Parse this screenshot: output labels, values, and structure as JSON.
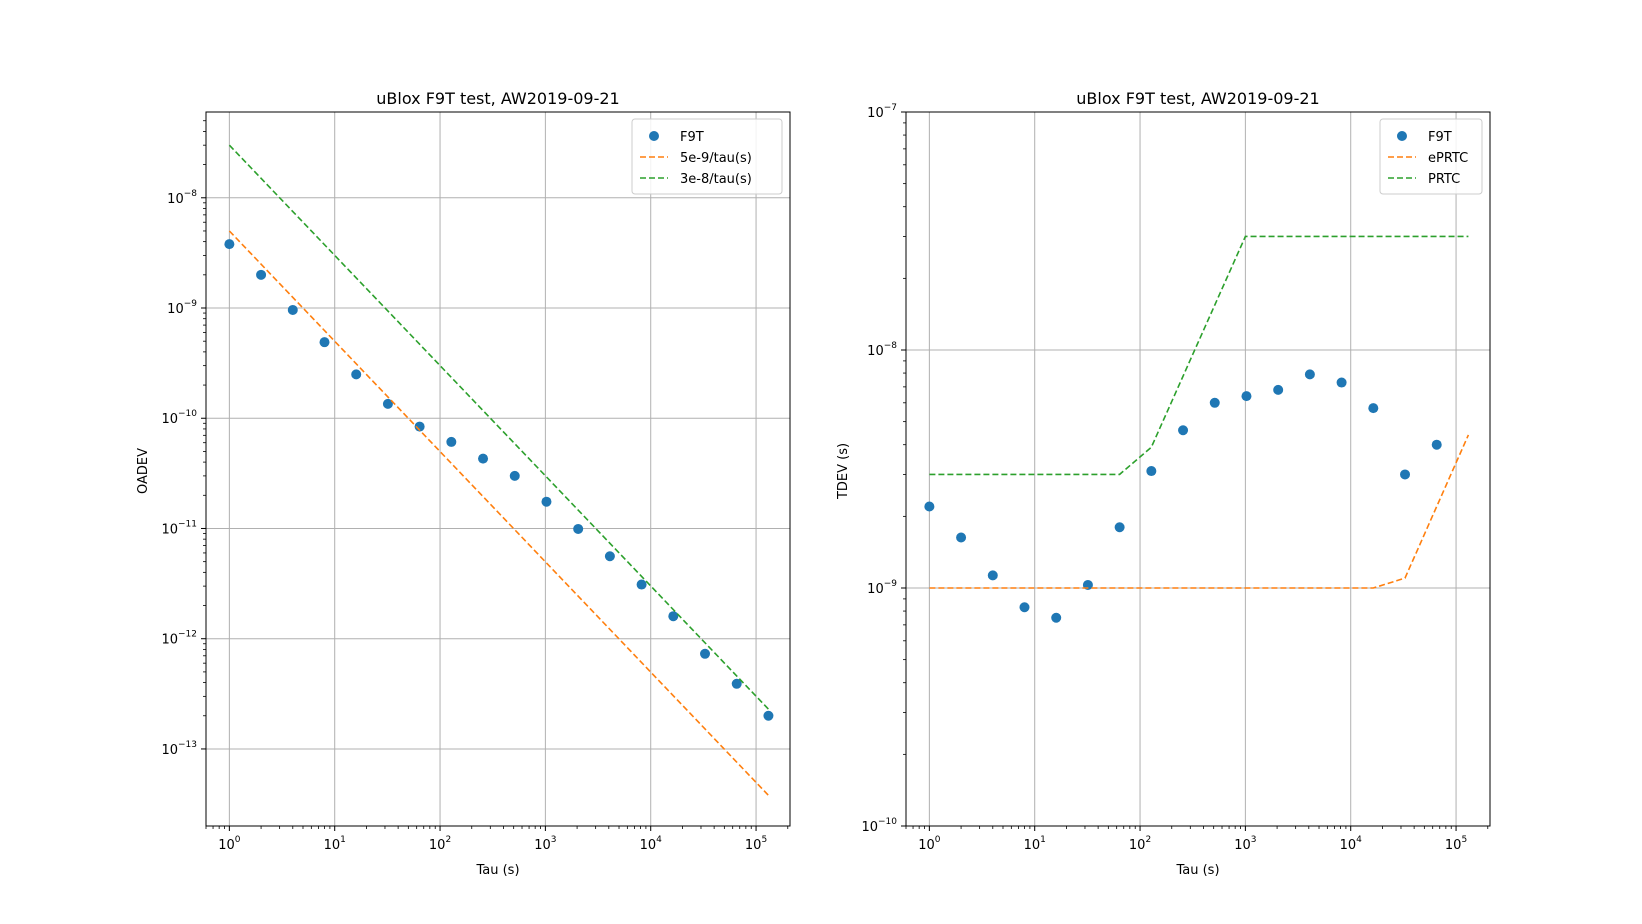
{
  "chart_data": [
    {
      "type": "scatter",
      "title": "uBlox F9T test, AW2019-09-21",
      "xlabel": "Tau (s)",
      "ylabel": "OADEV",
      "xscale": "log",
      "yscale": "log",
      "xlim": [
        0.6,
        210000
      ],
      "ylim": [
        2e-14,
        6e-08
      ],
      "xticks": [
        {
          "base": "10",
          "exp": "0",
          "value": 1
        },
        {
          "base": "10",
          "exp": "1",
          "value": 10
        },
        {
          "base": "10",
          "exp": "2",
          "value": 100
        },
        {
          "base": "10",
          "exp": "3",
          "value": 1000
        },
        {
          "base": "10",
          "exp": "4",
          "value": 10000
        },
        {
          "base": "10",
          "exp": "5",
          "value": 100000
        }
      ],
      "yticks": [
        {
          "base": "10",
          "exp": "−13",
          "value": 1e-13
        },
        {
          "base": "10",
          "exp": "−12",
          "value": 1e-12
        },
        {
          "base": "10",
          "exp": "−11",
          "value": 1e-11
        },
        {
          "base": "10",
          "exp": "−10",
          "value": 1e-10
        },
        {
          "base": "10",
          "exp": "−9",
          "value": 1e-09
        },
        {
          "base": "10",
          "exp": "−8",
          "value": 1e-08
        }
      ],
      "grid": true,
      "legend_position": "top-right",
      "series": [
        {
          "name": "F9T",
          "kind": "scatter",
          "color": "#1f77b4",
          "x": [
            1,
            2,
            4,
            8,
            16,
            32,
            64,
            128,
            256,
            512,
            1024,
            2048,
            4096,
            8192,
            16384,
            32768,
            65536,
            131072
          ],
          "y": [
            3.8e-09,
            2e-09,
            9.6e-10,
            4.9e-10,
            2.5e-10,
            1.35e-10,
            8.4e-11,
            6.1e-11,
            4.3e-11,
            3e-11,
            1.75e-11,
            9.9e-12,
            5.6e-12,
            3.1e-12,
            1.6e-12,
            7.3e-13,
            3.9e-13,
            2e-13
          ]
        },
        {
          "name": "5e-9/tau(s)",
          "kind": "dashed-line",
          "color": "#ff7f0e",
          "x": [
            1,
            131072
          ],
          "y": [
            5e-09,
            3.8e-14
          ]
        },
        {
          "name": "3e-8/tau(s)",
          "kind": "dashed-line",
          "color": "#2ca02c",
          "x": [
            1,
            131072
          ],
          "y": [
            3e-08,
            2.3e-13
          ]
        }
      ]
    },
    {
      "type": "scatter",
      "title": "uBlox F9T test, AW2019-09-21",
      "xlabel": "Tau (s)",
      "ylabel": "TDEV (s)",
      "xscale": "log",
      "yscale": "log",
      "xlim": [
        0.6,
        210000
      ],
      "ylim": [
        1e-10,
        1e-07
      ],
      "xticks": [
        {
          "base": "10",
          "exp": "0",
          "value": 1
        },
        {
          "base": "10",
          "exp": "1",
          "value": 10
        },
        {
          "base": "10",
          "exp": "2",
          "value": 100
        },
        {
          "base": "10",
          "exp": "3",
          "value": 1000
        },
        {
          "base": "10",
          "exp": "4",
          "value": 10000
        },
        {
          "base": "10",
          "exp": "5",
          "value": 100000
        }
      ],
      "yticks": [
        {
          "base": "10",
          "exp": "−10",
          "value": 1e-10
        },
        {
          "base": "10",
          "exp": "−9",
          "value": 1e-09
        },
        {
          "base": "10",
          "exp": "−8",
          "value": 1e-08
        },
        {
          "base": "10",
          "exp": "−7",
          "value": 1e-07
        }
      ],
      "grid": true,
      "legend_position": "top-right",
      "series": [
        {
          "name": "F9T",
          "kind": "scatter",
          "color": "#1f77b4",
          "x": [
            1,
            2,
            4,
            8,
            16,
            32,
            64,
            128,
            256,
            512,
            1024,
            2048,
            4096,
            8192,
            16384,
            32768,
            65536
          ],
          "y": [
            2.2e-09,
            1.63e-09,
            1.13e-09,
            8.3e-10,
            7.5e-10,
            1.03e-09,
            1.8e-09,
            3.1e-09,
            4.6e-09,
            6e-09,
            6.4e-09,
            6.8e-09,
            7.9e-09,
            7.3e-09,
            5.7e-09,
            3e-09,
            4e-09
          ]
        },
        {
          "name": "ePRTC",
          "kind": "dashed-line",
          "color": "#ff7f0e",
          "x": [
            1,
            16384,
            32768,
            131072
          ],
          "y": [
            1e-09,
            1e-09,
            1.1e-09,
            4.4e-09
          ]
        },
        {
          "name": "PRTC",
          "kind": "dashed-line",
          "color": "#2ca02c",
          "x": [
            1,
            64,
            128,
            1000,
            131072
          ],
          "y": [
            3e-09,
            3e-09,
            3.9e-09,
            3e-08,
            3e-08
          ]
        }
      ]
    }
  ]
}
